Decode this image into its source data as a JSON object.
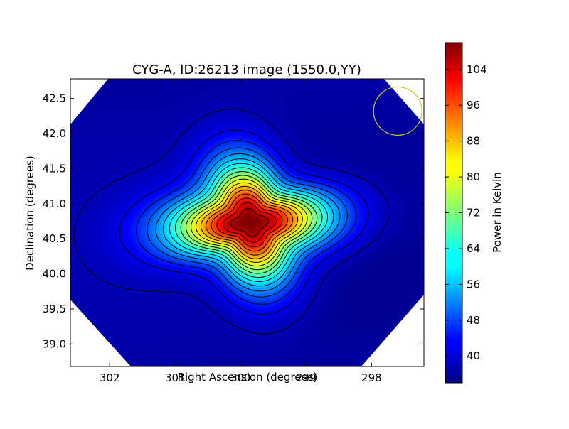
{
  "chart_data": {
    "type": "heatmap",
    "title": "CYG-A, ID:26213 image (1550.0,YY)",
    "xlabel": "Right Ascension (degrees)",
    "ylabel": "Declination (degrees)",
    "xlim": [
      302.6,
      297.2
    ],
    "ylim": [
      38.68,
      42.78
    ],
    "x_ticks": [
      302,
      301,
      300,
      299,
      298
    ],
    "y_ticks": [
      39.0,
      39.5,
      40.0,
      40.5,
      41.0,
      41.5,
      42.0,
      42.5
    ],
    "x_tick_labels": [
      "302",
      "301",
      "300",
      "299",
      "298"
    ],
    "y_tick_labels": [
      "39.0",
      "39.5",
      "40.0",
      "40.5",
      "41.0",
      "41.5",
      "42.0",
      "42.5"
    ],
    "source": {
      "name": "CYG-A",
      "ra": 299.85,
      "dec": 40.73,
      "peak": 108
    },
    "beam_circle": {
      "ra": 297.6,
      "dec": 42.32
    },
    "contour_levels": [
      38,
      42,
      46,
      50,
      54,
      58,
      62,
      66,
      70,
      74,
      78,
      82,
      86,
      90,
      94,
      98,
      102,
      106
    ],
    "colorbar": {
      "label": "Power in Kelvin",
      "min": 34,
      "max": 110,
      "ticks": [
        40,
        48,
        56,
        64,
        72,
        80,
        88,
        96,
        104
      ],
      "tick_labels": [
        "40",
        "48",
        "56",
        "64",
        "72",
        "80",
        "88",
        "96",
        "104"
      ]
    },
    "colors": {
      "colormap": "jet",
      "beam_circle": "#c8c820",
      "contour": "#000000"
    }
  }
}
